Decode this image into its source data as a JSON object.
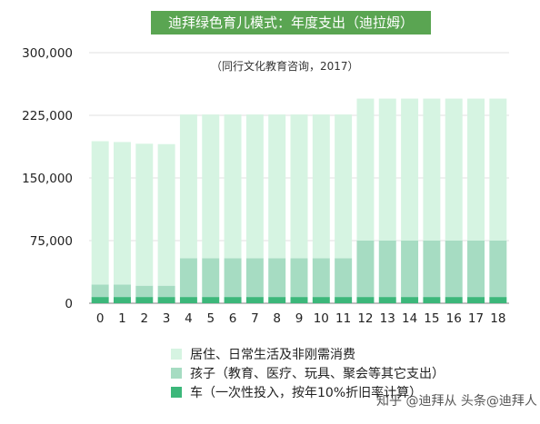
{
  "chart_data": {
    "type": "bar",
    "stacked": true,
    "title": "迪拜绿色育儿模式：年度支出（迪拉姆）",
    "subtitle": "（同行文化教育咨询，2017）",
    "xlabel": "",
    "ylabel": "",
    "categories": [
      "0",
      "1",
      "2",
      "3",
      "4",
      "5",
      "6",
      "7",
      "8",
      "9",
      "10",
      "11",
      "12",
      "13",
      "14",
      "15",
      "16",
      "17",
      "18"
    ],
    "ylim": [
      0,
      300000
    ],
    "yticks": [
      "300,000",
      "225,000",
      "150,000",
      "75,000",
      "0"
    ],
    "ytick_values": [
      300000,
      225000,
      150000,
      75000,
      0
    ],
    "grid": true,
    "legend_position": "bottom",
    "series": [
      {
        "name": "车（一次性投入，按年10%折旧率计算）",
        "color": "#3cb77a",
        "values": [
          7500,
          7500,
          7500,
          7500,
          7500,
          7500,
          7500,
          7500,
          7500,
          7500,
          7500,
          7500,
          7500,
          7500,
          7500,
          7500,
          7500,
          7500,
          7500
        ]
      },
      {
        "name": "孩子（教育、医疗、玩具、聚会等其它支出）",
        "color": "#a6dcc2",
        "values": [
          15000,
          15000,
          13500,
          13500,
          46500,
          46500,
          46500,
          46500,
          46500,
          46500,
          46500,
          46500,
          67500,
          67500,
          67500,
          67500,
          67500,
          67500,
          67500
        ]
      },
      {
        "name": "居住、日常生活及非刚需消费",
        "color": "#d6f4e2",
        "values": [
          171500,
          170500,
          170000,
          169500,
          172000,
          172000,
          172000,
          172000,
          172000,
          172000,
          172000,
          172000,
          170000,
          170000,
          170000,
          170000,
          170000,
          170000,
          170000
        ]
      }
    ]
  },
  "legend_order": [
    2,
    1,
    0
  ],
  "watermark": "知乎 @迪拜从 头条@迪拜人"
}
